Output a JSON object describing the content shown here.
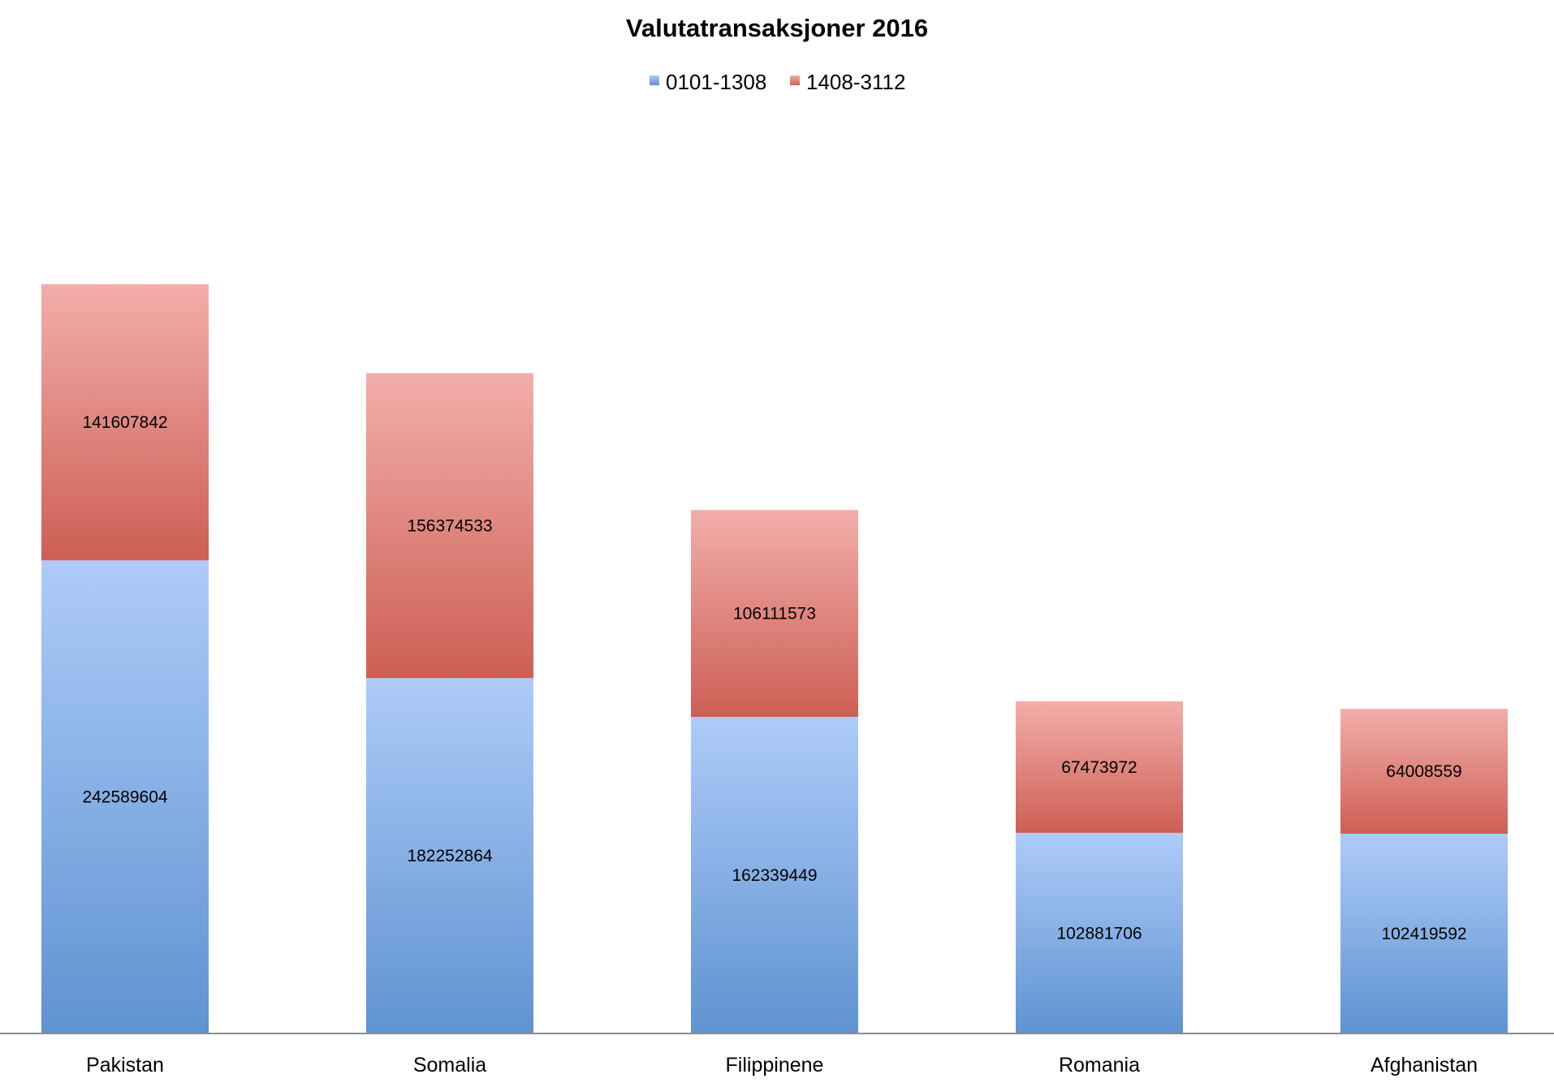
{
  "chart_data": {
    "type": "bar",
    "stacked": true,
    "title": "Valutatransaksjoner 2016",
    "xlabel": "",
    "ylabel": "",
    "ylim": [
      0,
      480000000
    ],
    "grid": false,
    "legend_position": "top-center",
    "categories": [
      "Pakistan",
      "Somalia",
      "Filippinene",
      "Romania",
      "Afghanistan"
    ],
    "series": [
      {
        "name": "0101-1308",
        "color_light": "#AECBF8",
        "color_dark": "#5F93D1",
        "values": [
          242589604,
          182252864,
          162339449,
          102881706,
          102419592
        ]
      },
      {
        "name": "1408-3112",
        "color_light": "#F2AEAA",
        "color_dark": "#CD5F55",
        "values": [
          141607842,
          156374533,
          106111573,
          67473972,
          64008559
        ]
      }
    ]
  }
}
